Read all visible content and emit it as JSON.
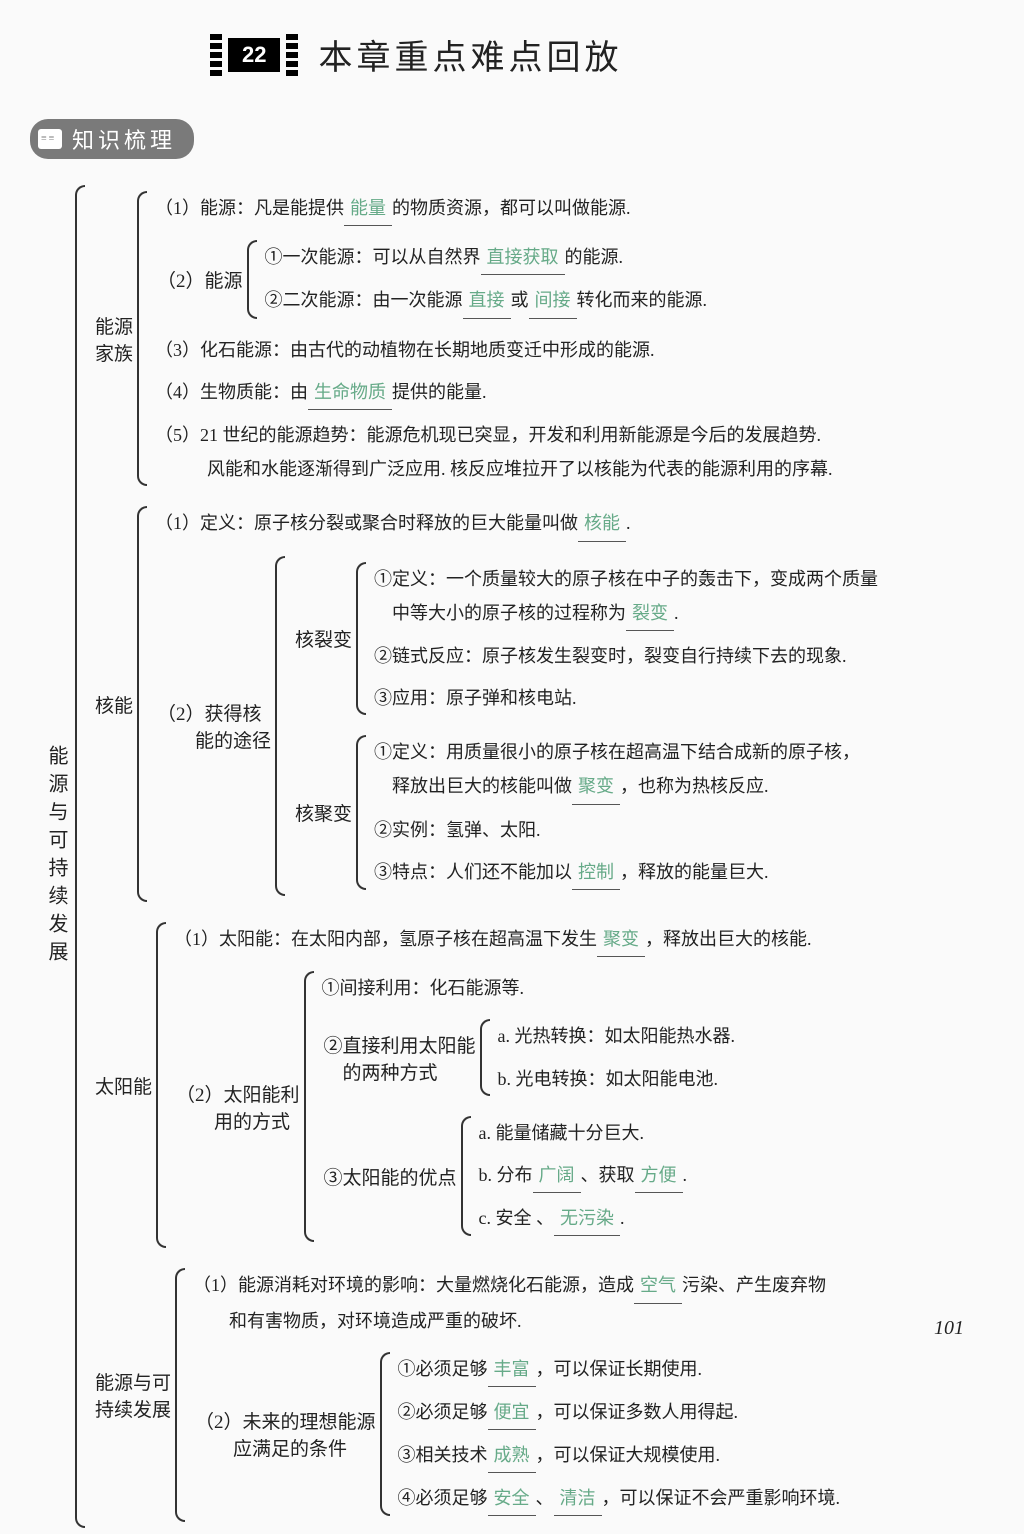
{
  "chapter_num": "22",
  "header_title": "本章重点难点回放",
  "section_badge": "知识梳理",
  "root_label": "能源与可持续发展",
  "page_num": "101",
  "colors": {
    "blank_text": "#6fa58a",
    "underline": "#555555",
    "badge_bg": "#7a7a7a",
    "text": "#222222",
    "bg": "#fafafa"
  },
  "fonts": {
    "body_size": 18,
    "title_size": 34,
    "badge_size": 22,
    "line_height": 1.9
  },
  "sections": {
    "energy_family": {
      "label": "能源\n家族",
      "items": [
        {
          "pre": "（1）能源：凡是能提供",
          "blank": "能量",
          "post": "的物质资源，都可以叫做能源."
        },
        {
          "pre": "（2）能源",
          "sub": [
            {
              "pre": "①一次能源：可以从自然界",
              "blank": "直接获取",
              "post": "的能源."
            },
            {
              "pre": "②二次能源：由一次能源",
              "blank": "直接",
              "mid": "或",
              "blank2": "间接",
              "post": "转化而来的能源."
            }
          ]
        },
        {
          "pre": "（3）化石能源：由古代的动植物在长期地质变迁中形成的能源."
        },
        {
          "pre": "（4）生物质能：由",
          "blank": "生命物质",
          "post": "提供的能量."
        },
        {
          "pre": "（5）21 世纪的能源趋势：能源危机现已突显，开发和利用新能源是今后的发展趋势.",
          "line2": "风能和水能逐渐得到广泛应用. 核反应堆拉开了以核能为代表的能源利用的序幕."
        }
      ]
    },
    "nuclear": {
      "label": "核能",
      "def": {
        "pre": "（1）定义：原子核分裂或聚合时释放的巨大能量叫做",
        "blank": "核能",
        "post": "."
      },
      "methods_label": "（2）获得核\n　　能的途径",
      "fission_label": "核裂变",
      "fission": [
        {
          "pre": "①定义：一个质量较大的原子核在中子的轰击下，变成两个质量",
          "line2_pre": "　中等大小的原子核的过程称为",
          "blank": "裂变",
          "line2_post": "."
        },
        {
          "pre": "②链式反应：原子核发生裂变时，裂变自行持续下去的现象."
        },
        {
          "pre": "③应用：原子弹和核电站."
        }
      ],
      "fusion_label": "核聚变",
      "fusion": [
        {
          "pre": "①定义：用质量很小的原子核在超高温下结合成新的原子核，",
          "line2_pre": "　释放出巨大的核能叫做",
          "blank": "聚变",
          "line2_post": "，也称为热核反应."
        },
        {
          "pre": "②实例：氢弹、太阳."
        },
        {
          "pre": "③特点：人们还不能加以",
          "blank": "控制",
          "post": "，释放的能量巨大."
        }
      ]
    },
    "solar": {
      "label": "太阳能",
      "def": {
        "pre": "（1）太阳能：在太阳内部，氢原子核在超高温下发生",
        "blank": "聚变",
        "post": "，释放出巨大的核能."
      },
      "use_label": "（2）太阳能利\n　　用的方式",
      "uses": {
        "a": "①间接利用：化石能源等.",
        "b_label": "②直接利用太阳能\n　的两种方式",
        "b_items": [
          "a. 光热转换：如太阳能热水器.",
          "b. 光电转换：如太阳能电池."
        ],
        "c_label": "③太阳能的优点",
        "c_items": [
          {
            "pre": "a. 能量储藏十分巨大."
          },
          {
            "pre": "b. 分布",
            "blank": "广阔",
            "mid": "、获取",
            "blank2": "方便",
            "post": "."
          },
          {
            "pre": "c. 安全 、",
            "blank": "无污染",
            "post": "."
          }
        ]
      }
    },
    "sustain": {
      "label": "能源与可\n持续发展",
      "impact": {
        "pre": "（1）能源消耗对环境的影响：大量燃烧化石能源，造成",
        "blank": "空气",
        "post": "污染、产生废弃物",
        "line2": "和有害物质，对环境造成严重的破坏."
      },
      "future_label": "（2）未来的理想能源\n　　应满足的条件",
      "future": [
        {
          "pre": "①必须足够",
          "blank": "丰富",
          "post": "，可以保证长期使用."
        },
        {
          "pre": "②必须足够",
          "blank": "便宜",
          "post": "，可以保证多数人用得起."
        },
        {
          "pre": "③相关技术",
          "blank": "成熟",
          "post": "，可以保证大规模使用."
        },
        {
          "pre": "④必须足够",
          "blank": "安全",
          "mid": "、",
          "blank2": "清洁",
          "post": "，可以保证不会严重影响环境."
        }
      ]
    }
  }
}
